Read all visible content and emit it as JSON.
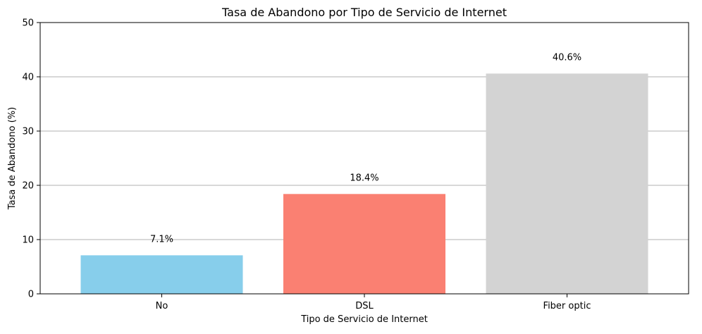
{
  "chart_data": {
    "type": "bar",
    "title": "Tasa de Abandono por Tipo de Servicio de Internet",
    "xlabel": "Tipo de Servicio de Internet",
    "ylabel": "Tasa de Abandono (%)",
    "categories": [
      "No",
      "DSL",
      "Fiber optic"
    ],
    "values": [
      7.1,
      18.4,
      40.6
    ],
    "data_labels": [
      "7.1%",
      "18.4%",
      "40.6%"
    ],
    "colors": [
      "#87ceeb",
      "#fa8072",
      "#d3d3d3"
    ],
    "ylim": [
      0,
      50
    ],
    "yticks": [
      0,
      10,
      20,
      30,
      40,
      50
    ],
    "grid": "y",
    "legend": "none"
  }
}
